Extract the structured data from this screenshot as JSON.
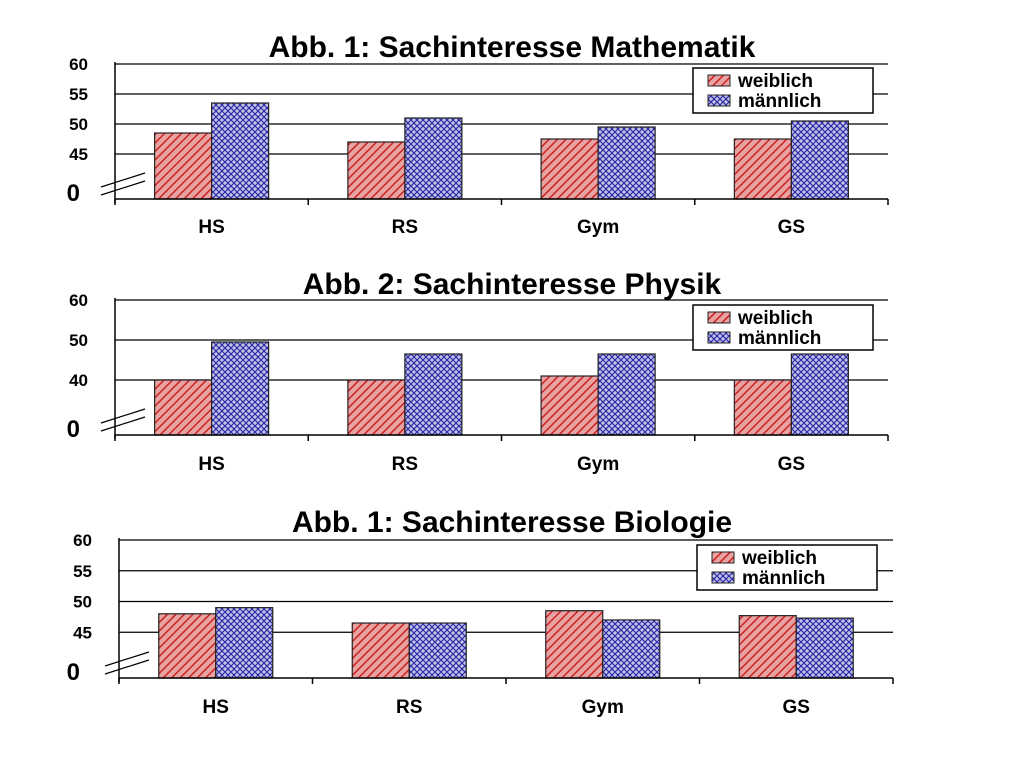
{
  "chart_data": [
    {
      "type": "bar",
      "title": "Abb. 1: Sachinteresse Mathematik",
      "categories": [
        "HS",
        "RS",
        "Gym",
        "GS"
      ],
      "series": [
        {
          "name": "weiblich",
          "values": [
            48.5,
            47.0,
            47.5,
            47.5
          ]
        },
        {
          "name": "männlich",
          "values": [
            53.5,
            51.0,
            49.5,
            50.5
          ]
        }
      ],
      "yticks": [
        "60",
        "55",
        "50",
        "45"
      ],
      "ytick_values": [
        60,
        55,
        50,
        45
      ],
      "ylim": [
        40,
        60
      ],
      "axis_break_label": "0",
      "legend": "top-right",
      "grid": true
    },
    {
      "type": "bar",
      "title": "Abb. 2: Sachinteresse Physik",
      "categories": [
        "HS",
        "RS",
        "Gym",
        "GS"
      ],
      "series": [
        {
          "name": "weiblich",
          "values": [
            40.0,
            40.0,
            41.0,
            40.0
          ]
        },
        {
          "name": "männlich",
          "values": [
            49.5,
            46.5,
            46.5,
            46.5
          ]
        }
      ],
      "yticks": [
        "60",
        "50",
        "40"
      ],
      "ytick_values": [
        60,
        50,
        40
      ],
      "ylim": [
        30,
        60
      ],
      "axis_break_label": "0",
      "legend": "top-right",
      "grid": true
    },
    {
      "type": "bar",
      "title": "Abb. 1: Sachinteresse Biologie",
      "categories": [
        "HS",
        "RS",
        "Gym",
        "GS"
      ],
      "series": [
        {
          "name": "weiblich",
          "values": [
            48.0,
            46.5,
            48.5,
            47.7
          ]
        },
        {
          "name": "männlich",
          "values": [
            49.0,
            46.5,
            47.0,
            47.3
          ]
        }
      ],
      "yticks": [
        "60",
        "55",
        "50",
        "45"
      ],
      "ytick_values": [
        60,
        55,
        50,
        45
      ],
      "ylim": [
        40,
        60
      ],
      "axis_break_label": "0",
      "legend": "top-right",
      "grid": true
    }
  ],
  "colors": {
    "weiblich_fill": "#e8a2a2",
    "weiblich_pattern": "#cc2222",
    "maennlich_fill": "#c3c3e8",
    "maennlich_pattern": "#2a2aa6",
    "bar_outline": "#222222",
    "axis": "#000000"
  }
}
